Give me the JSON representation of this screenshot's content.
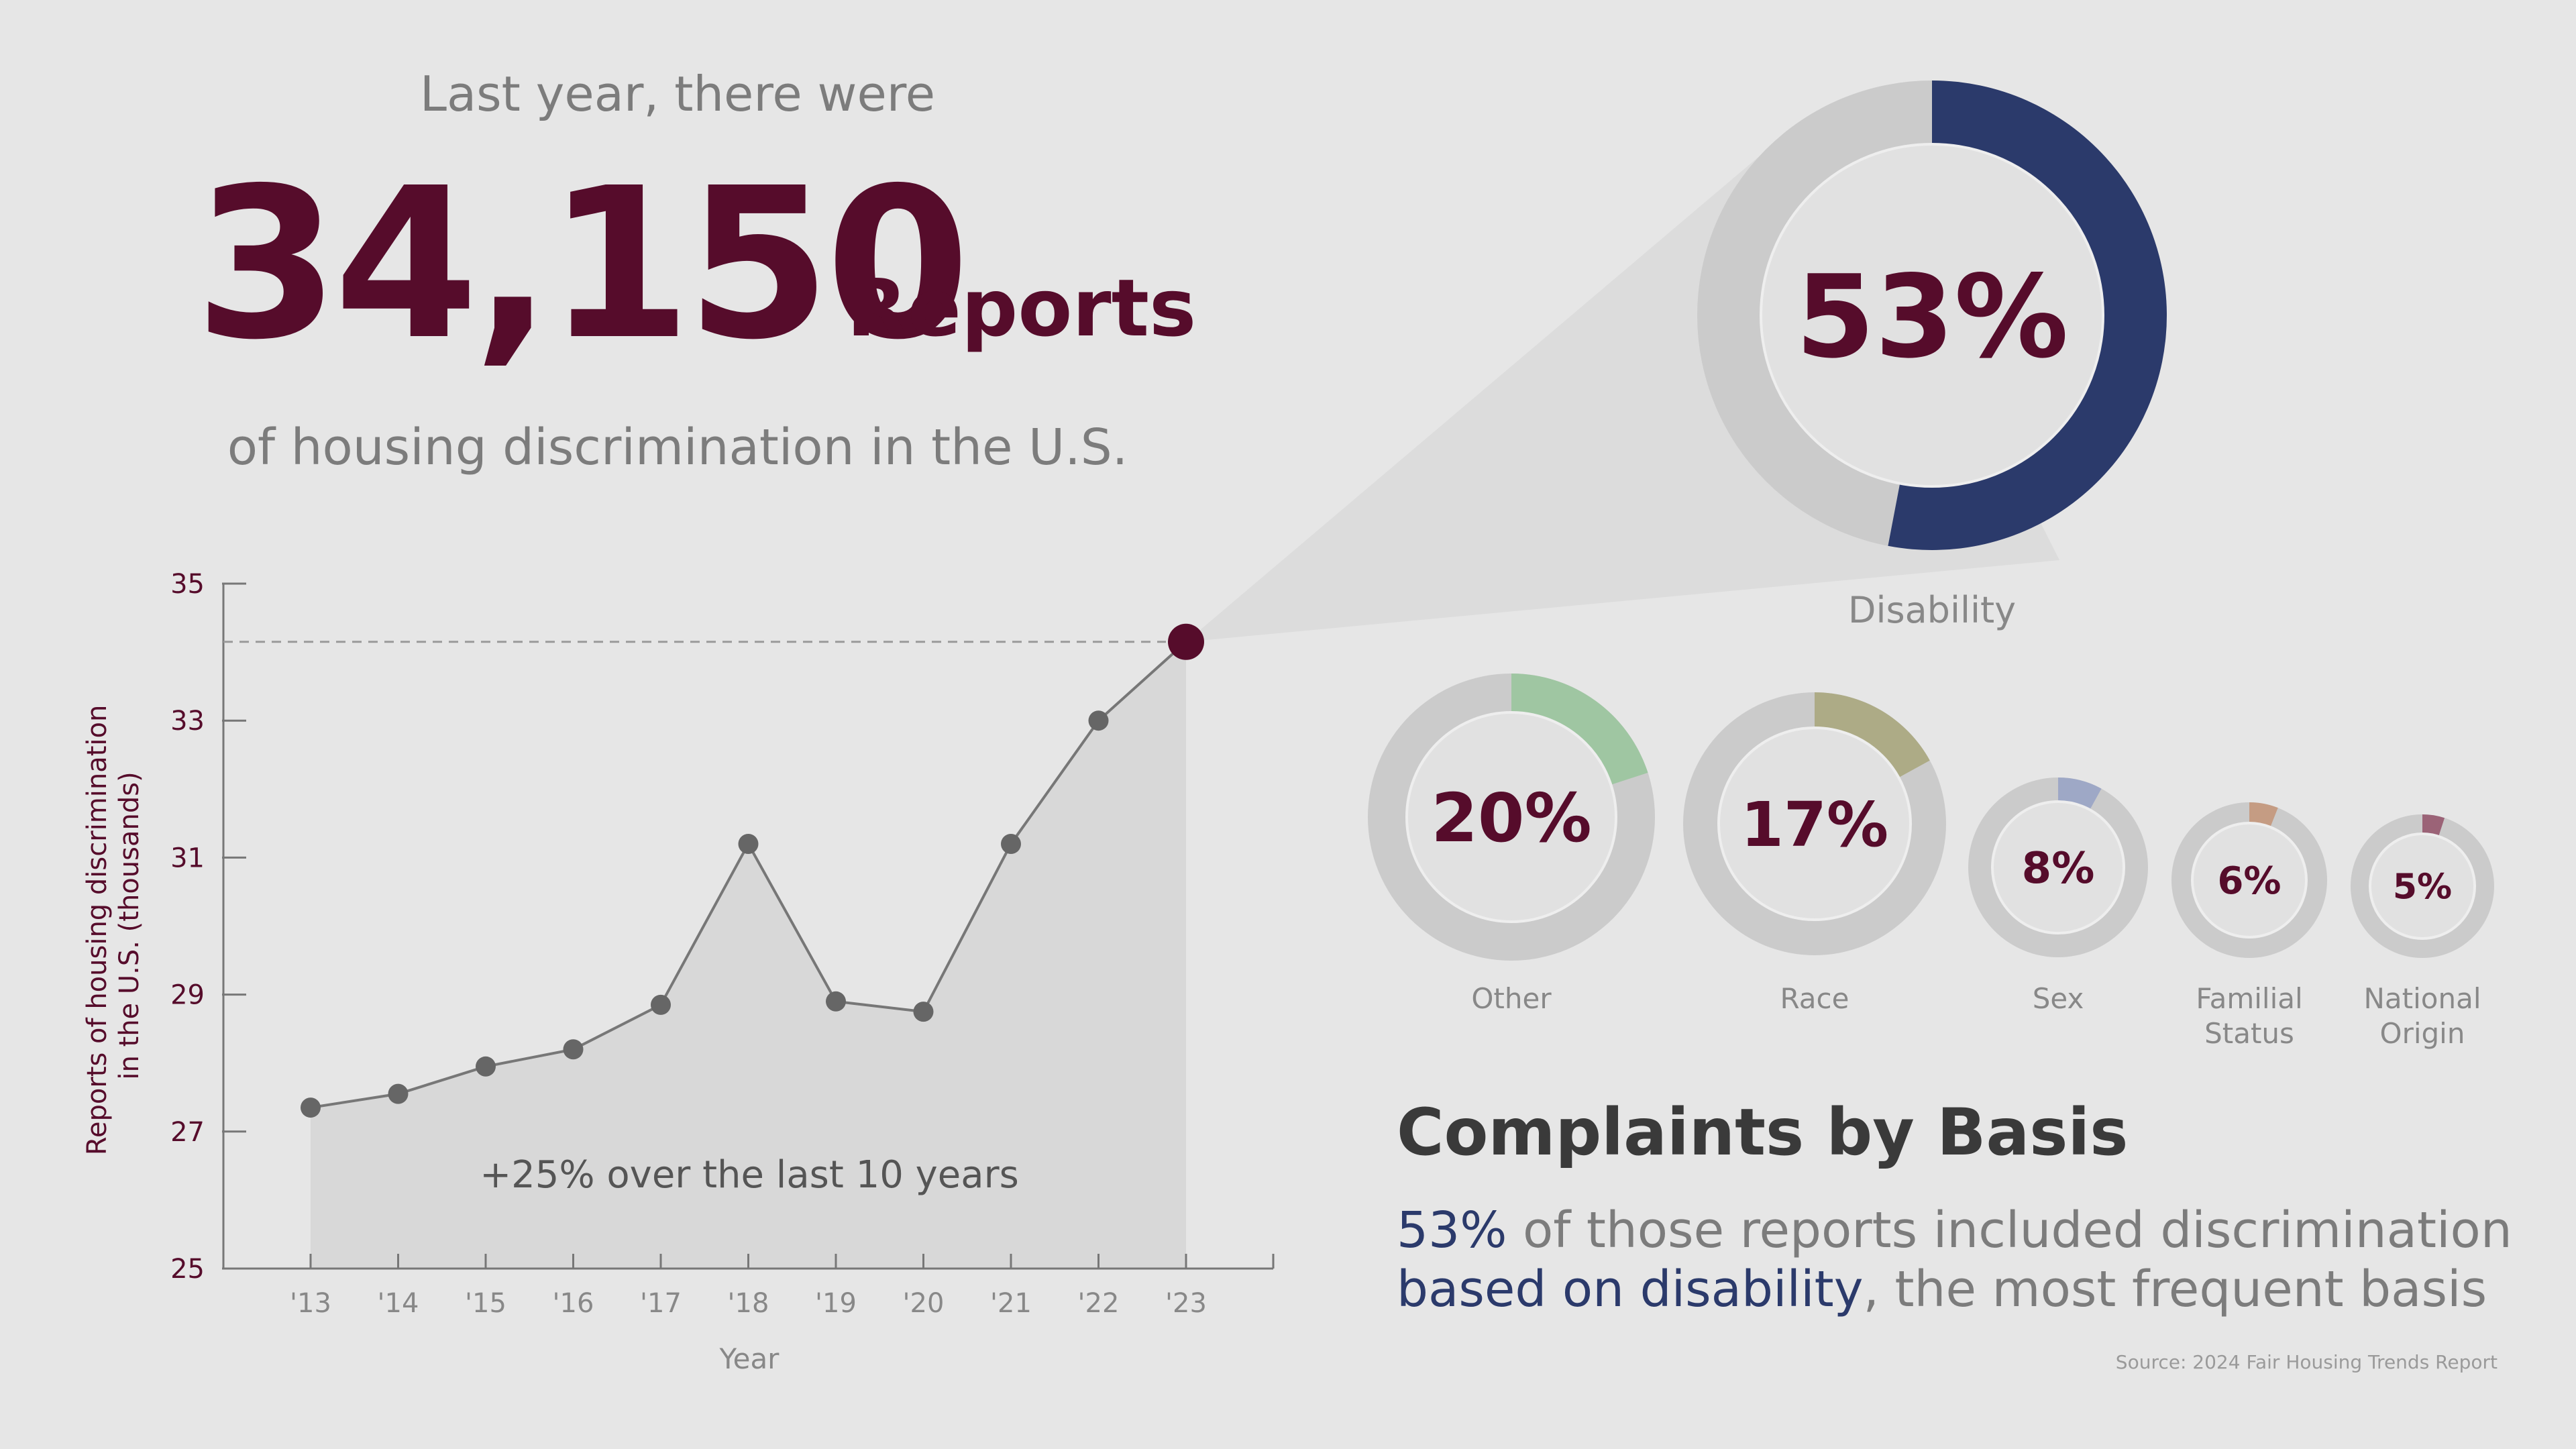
{
  "header": {
    "intro": "Last year, there were",
    "big_number": "34,150",
    "big_unit": "Reports",
    "subline": "of housing discrimination in the U.S."
  },
  "colors": {
    "maroon": "#560c2b",
    "navy": "#2b3a6b",
    "track": "#cbcbcb",
    "area": "#d8d8d8",
    "point": "#666666"
  },
  "chart_data": [
    {
      "type": "line",
      "title": "",
      "xlabel": "Year",
      "ylabel": "Reports of housing discrimination in the U.S. (thousands)",
      "ylim": [
        25,
        35
      ],
      "yticks": [
        25,
        27,
        29,
        31,
        33,
        35
      ],
      "categories": [
        "'13",
        "'14",
        "'15",
        "'16",
        "'17",
        "'18",
        "'19",
        "'20",
        "'21",
        "'22",
        "'23"
      ],
      "values": [
        27.35,
        27.55,
        27.95,
        28.2,
        28.85,
        31.2,
        28.9,
        28.75,
        31.2,
        33.0,
        34.15
      ],
      "annotation": "+25% over the last 10 years",
      "highlight": {
        "category": "'23",
        "value": 34.15
      },
      "grid": false,
      "fill": "area"
    },
    {
      "type": "pie",
      "title": "Complaints by Basis",
      "categories": [
        "Disability",
        "Other",
        "Race",
        "Sex",
        "Familial Status",
        "National Origin"
      ],
      "values": [
        53,
        20,
        17,
        8,
        6,
        5
      ],
      "labels": [
        "53%",
        "20%",
        "17%",
        "8%",
        "6%",
        "5%"
      ],
      "colors": [
        "#2b3a6b",
        "#9fc6a2",
        "#adab86",
        "#9ea8c6",
        "#c59c83",
        "#9b6377"
      ]
    }
  ],
  "donut_captions": {
    "disability": "Disability",
    "other": "Other",
    "race": "Race",
    "sex": "Sex",
    "familial_line1": "Familial",
    "familial_line2": "Status",
    "national_line1": "National",
    "national_line2": "Origin"
  },
  "summary": {
    "heading": "Complaints by Basis",
    "pct": "53%",
    "text_a": " of those reports included discrimination",
    "hl": "based on disability",
    "text_b": ", the most frequent basis"
  },
  "source": "Source: 2024 Fair Housing Trends Report"
}
